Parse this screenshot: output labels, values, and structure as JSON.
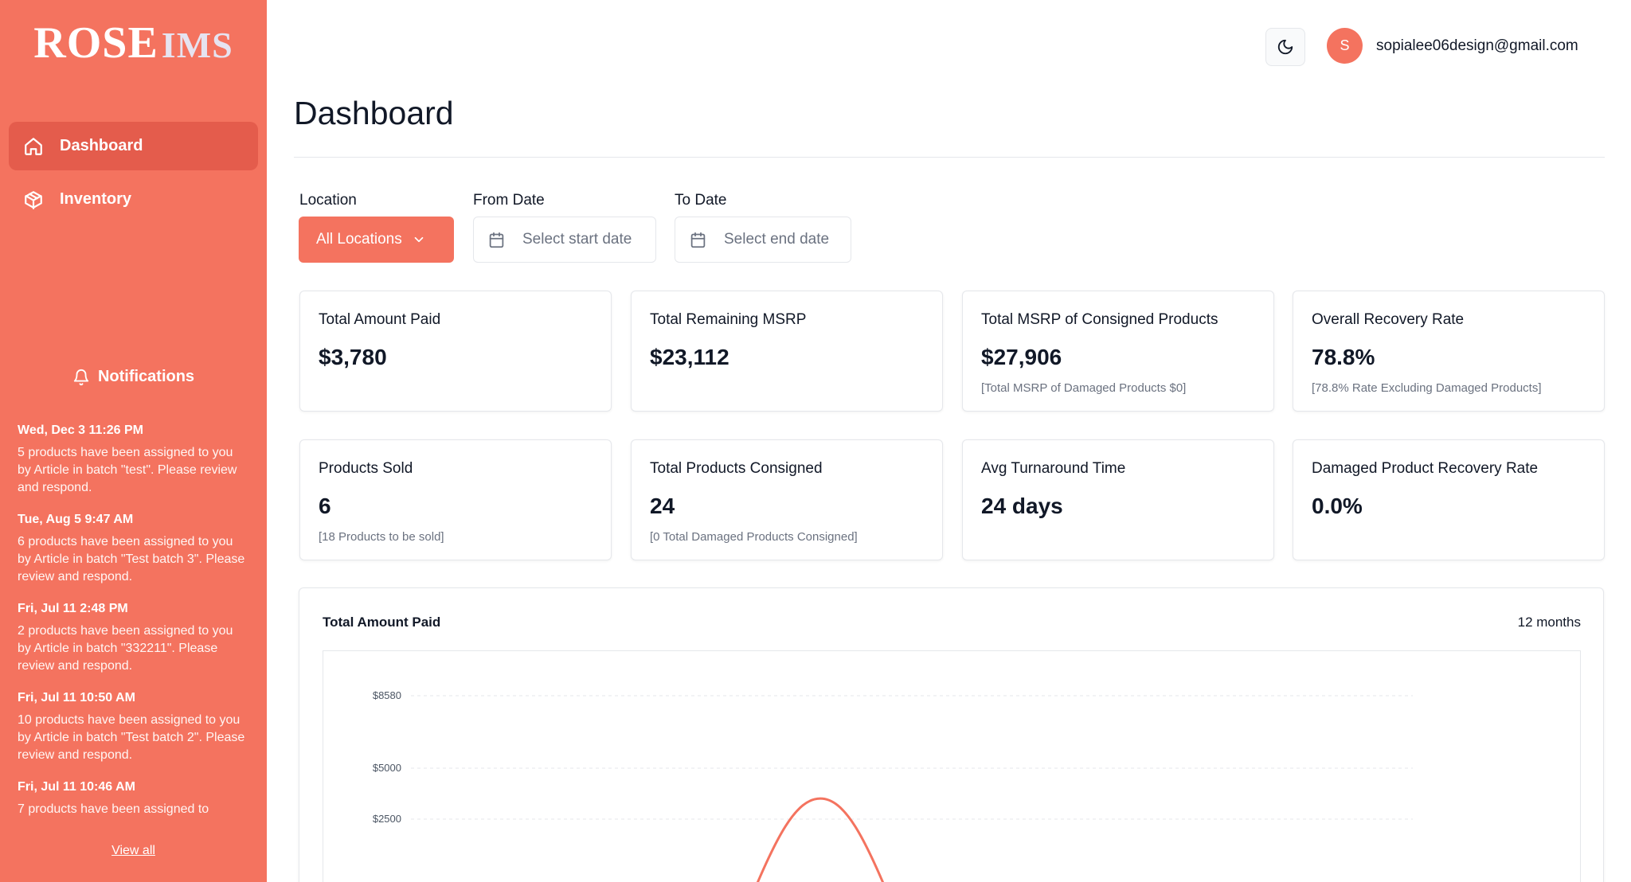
{
  "app": {
    "logo_main": "ROSE",
    "logo_sub": "IMS"
  },
  "sidebar": {
    "items": [
      {
        "label": "Dashboard",
        "icon": "home-icon",
        "active": true
      },
      {
        "label": "Inventory",
        "icon": "package-icon",
        "active": false
      }
    ],
    "notifications_title": "Notifications",
    "notifications": [
      {
        "time": "Wed, Dec 3 11:26 PM",
        "message": "5 products have been assigned to you by Article in batch \"test\". Please review and respond."
      },
      {
        "time": "Tue, Aug 5 9:47 AM",
        "message": "6 products have been assigned to you by Article in batch \"Test batch 3\". Please review and respond."
      },
      {
        "time": "Fri, Jul 11 2:48 PM",
        "message": "2 products have been assigned to you by Article in batch \"332211\". Please review and respond."
      },
      {
        "time": "Fri, Jul 11 10:50 AM",
        "message": "10 products have been assigned to you by Article in batch \"Test batch 2\". Please review and respond."
      },
      {
        "time": "Fri, Jul 11 10:46 AM",
        "message": "7 products have been assigned to"
      }
    ],
    "view_all": "View all"
  },
  "header": {
    "theme_icon": "moon-icon",
    "avatar_initial": "S",
    "user_email": "sopialee06design@gmail.com"
  },
  "page": {
    "title": "Dashboard"
  },
  "filters": {
    "location_label": "Location",
    "location_value": "All Locations",
    "from_label": "From Date",
    "from_placeholder": "Select start date",
    "to_label": "To Date",
    "to_placeholder": "Select end date"
  },
  "stats": [
    {
      "title": "Total Amount Paid",
      "value": "$3,780",
      "sub": ""
    },
    {
      "title": "Total Remaining MSRP",
      "value": "$23,112",
      "sub": ""
    },
    {
      "title": "Total MSRP of Consigned Products",
      "value": "$27,906",
      "sub": "[Total MSRP of Damaged Products $0]"
    },
    {
      "title": "Overall Recovery Rate",
      "value": "78.8%",
      "sub": "[78.8% Rate Excluding Damaged Products]"
    },
    {
      "title": "Products Sold",
      "value": "6",
      "sub": "[18 Products to be sold]"
    },
    {
      "title": "Total Products Consigned",
      "value": "24",
      "sub": "[0 Total Damaged Products Consigned]"
    },
    {
      "title": "Avg Turnaround Time",
      "value": "24 days",
      "sub": ""
    },
    {
      "title": "Damaged Product Recovery Rate",
      "value": "0.0%",
      "sub": ""
    }
  ],
  "chart": {
    "title": "Total Amount Paid",
    "range": "12 months"
  },
  "chart_data": {
    "type": "line",
    "title": "Total Amount Paid",
    "y_ticks": [
      "$8580",
      "$5000",
      "$2500"
    ],
    "ylim": [
      0,
      8580
    ],
    "grid": true,
    "series": [
      {
        "values": [
          3510
        ]
      }
    ],
    "color": "#f4735f"
  },
  "colors": {
    "accent": "#f4735f",
    "accent_dark": "#e45c4c"
  }
}
